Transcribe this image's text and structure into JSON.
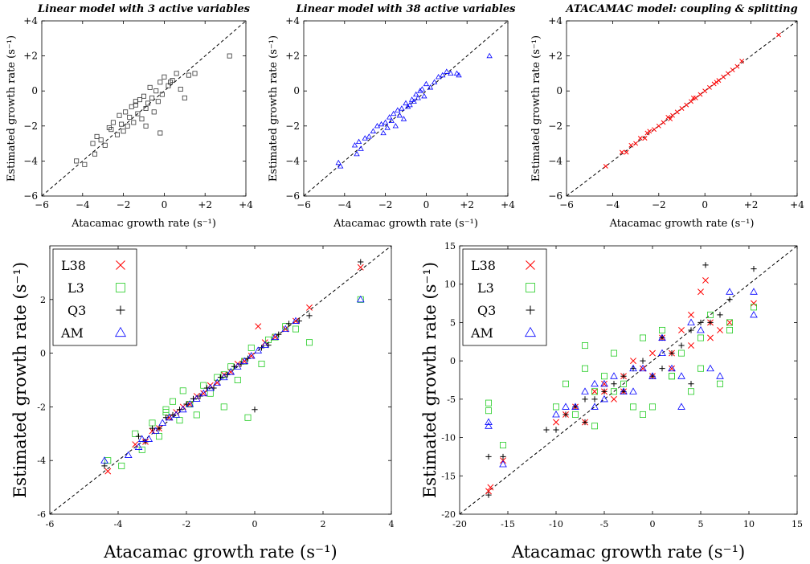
{
  "figure": {
    "colors": {
      "L38": "#ff0000",
      "L3": "#22cc22",
      "Q3": "#000000",
      "AM": "#0000ff",
      "top_markers": [
        "#333333",
        "#0000ff",
        "#ff0000"
      ]
    },
    "top_marker_icons": [
      "square-icon",
      "triangle-icon",
      "cross-icon"
    ]
  },
  "chart_data": [
    {
      "type": "scatter",
      "title": "Linear model with 3 active variables",
      "xlabel": "Atacamac growth rate (s⁻¹)",
      "ylabel": "Estimated growth rate (s⁻¹)",
      "xlim": [
        -6,
        4
      ],
      "ylim": [
        -6,
        4
      ],
      "xticks": [
        "−6",
        "−4",
        "−2",
        "0",
        "+2",
        "+4"
      ],
      "yticks": [
        "−6",
        "−4",
        "−2",
        "0",
        "+2",
        "+4"
      ],
      "reference_line": "y = x",
      "series": [
        {
          "marker": "square",
          "x": [
            -4.3,
            -3.9,
            -3.5,
            -3.4,
            -3.3,
            -3.1,
            -2.9,
            -2.7,
            -2.5,
            -2.3,
            -2.2,
            -2.1,
            -2.0,
            -1.9,
            -1.8,
            -1.7,
            -1.6,
            -1.5,
            -1.4,
            -1.3,
            -1.2,
            -1.1,
            -1.0,
            -0.9,
            -0.8,
            -0.7,
            -0.6,
            -0.5,
            -0.4,
            -0.3,
            -0.2,
            -0.1,
            0.0,
            0.2,
            0.4,
            0.6,
            0.8,
            1.0,
            1.2,
            1.5,
            -2.6,
            -1.4,
            -0.9,
            -0.2,
            0.3,
            3.2
          ],
          "y": [
            -4.0,
            -4.2,
            -3.0,
            -3.6,
            -2.6,
            -2.8,
            -3.1,
            -2.1,
            -1.8,
            -2.5,
            -1.4,
            -1.9,
            -2.3,
            -1.2,
            -2.0,
            -1.5,
            -0.9,
            -1.8,
            -0.8,
            -1.3,
            -0.5,
            -1.6,
            -0.3,
            -1.0,
            -0.7,
            0.2,
            -0.4,
            -1.2,
            0.0,
            -0.6,
            0.5,
            -0.2,
            0.8,
            0.3,
            0.6,
            1.0,
            0.1,
            -0.4,
            0.9,
            1.0,
            -2.2,
            -0.6,
            -2.0,
            -2.4,
            0.5,
            2.0
          ]
        }
      ]
    },
    {
      "type": "scatter",
      "title": "Linear model with 38 active variables",
      "xlabel": "Atacamac growth rate (s⁻¹)",
      "ylabel": "Estimated growth rate (s⁻¹)",
      "xlim": [
        -6,
        4
      ],
      "ylim": [
        -6,
        4
      ],
      "xticks": [
        "−6",
        "−4",
        "−2",
        "0",
        "+2",
        "+4"
      ],
      "yticks": [
        "−6",
        "−4",
        "−2",
        "0",
        "+2",
        "+4"
      ],
      "reference_line": "y = x",
      "series": [
        {
          "marker": "triangle",
          "x": [
            -4.3,
            -4.2,
            -3.5,
            -3.4,
            -3.3,
            -3.2,
            -3.0,
            -2.8,
            -2.6,
            -2.4,
            -2.2,
            -2.1,
            -2.0,
            -1.9,
            -1.8,
            -1.7,
            -1.6,
            -1.5,
            -1.4,
            -1.3,
            -1.2,
            -1.1,
            -1.0,
            -0.9,
            -0.8,
            -0.7,
            -0.6,
            -0.5,
            -0.4,
            -0.3,
            -0.2,
            -0.1,
            0.0,
            0.2,
            0.4,
            0.6,
            0.8,
            1.0,
            1.2,
            1.5,
            1.6,
            3.1
          ],
          "y": [
            -4.1,
            -4.3,
            -3.1,
            -3.6,
            -2.9,
            -3.3,
            -2.7,
            -2.6,
            -2.3,
            -2.0,
            -1.9,
            -2.4,
            -1.8,
            -2.1,
            -1.5,
            -1.7,
            -1.3,
            -2.0,
            -1.1,
            -1.4,
            -1.0,
            -1.6,
            -0.7,
            -0.9,
            -0.8,
            -0.5,
            -0.6,
            -0.2,
            -0.4,
            0.0,
            0.1,
            -0.3,
            0.4,
            0.2,
            0.5,
            0.8,
            0.9,
            1.1,
            1.0,
            1.0,
            0.9,
            2.0
          ]
        }
      ]
    },
    {
      "type": "scatter",
      "title": "ATACAMAC model: coupling & splitting",
      "xlabel": "Atacamac growth rate (s⁻¹)",
      "ylabel": "Estimated growth rate (s⁻¹)",
      "xlim": [
        -6,
        4
      ],
      "ylim": [
        -6,
        4
      ],
      "xticks": [
        "−6",
        "−4",
        "−2",
        "0",
        "+2",
        "+4"
      ],
      "yticks": [
        "−6",
        "−4",
        "−2",
        "0",
        "+2",
        "+4"
      ],
      "reference_line": "y = x",
      "series": [
        {
          "marker": "x",
          "x": [
            -4.3,
            -3.6,
            -3.4,
            -3.2,
            -3.0,
            -2.8,
            -2.6,
            -2.4,
            -2.2,
            -2.0,
            -1.8,
            -1.6,
            -1.4,
            -1.2,
            -1.0,
            -0.8,
            -0.6,
            -0.4,
            -0.2,
            0.0,
            0.2,
            0.4,
            0.6,
            0.8,
            1.0,
            1.2,
            1.4,
            1.6,
            -2.5,
            -1.5,
            -0.5,
            0.5,
            3.2
          ],
          "y": [
            -4.3,
            -3.5,
            -3.5,
            -3.1,
            -3.0,
            -2.7,
            -2.7,
            -2.3,
            -2.2,
            -2.0,
            -1.8,
            -1.5,
            -1.4,
            -1.2,
            -1.0,
            -0.8,
            -0.6,
            -0.4,
            -0.2,
            0.0,
            0.2,
            0.4,
            0.6,
            0.8,
            1.0,
            1.2,
            1.4,
            1.7,
            -2.4,
            -1.6,
            -0.4,
            0.5,
            3.2
          ]
        }
      ]
    },
    {
      "type": "scatter",
      "xlabel": "Atacamac growth rate (s⁻¹)",
      "ylabel": "Estimated growth rate (s⁻¹)",
      "xlim": [
        -6,
        4
      ],
      "ylim": [
        -6,
        4
      ],
      "xticks": [
        "-6",
        "-4",
        "-2",
        "0",
        "2",
        "4"
      ],
      "yticks": [
        "-6",
        "-4",
        "-2",
        "0",
        "2"
      ],
      "reference_line": "y = x",
      "legend": {
        "placement": "top-left"
      },
      "series": [
        {
          "name": "L38",
          "marker": "x",
          "x": [
            -4.3,
            -3.5,
            -3.2,
            -3.0,
            -2.8,
            -2.5,
            -2.3,
            -2.1,
            -1.9,
            -1.7,
            -1.5,
            -1.3,
            -1.1,
            -0.9,
            -0.7,
            -0.5,
            -0.3,
            -0.1,
            0.1,
            0.3,
            0.6,
            0.9,
            1.2,
            1.6,
            3.1
          ],
          "y": [
            -4.4,
            -3.4,
            -3.3,
            -2.9,
            -2.8,
            -2.4,
            -2.2,
            -2.0,
            -1.9,
            -1.6,
            -1.5,
            -1.2,
            -1.1,
            -0.8,
            -0.7,
            -0.4,
            -0.3,
            -0.1,
            1.0,
            0.4,
            0.6,
            0.9,
            1.2,
            1.7,
            3.2
          ]
        },
        {
          "name": "L3",
          "marker": "square",
          "x": [
            -4.3,
            -3.9,
            -3.5,
            -3.3,
            -3.0,
            -2.8,
            -2.6,
            -2.4,
            -2.2,
            -2.1,
            -1.9,
            -1.7,
            -1.5,
            -1.3,
            -1.1,
            -0.9,
            -0.7,
            -0.5,
            -0.3,
            -0.1,
            0.2,
            0.4,
            0.6,
            0.9,
            1.2,
            1.6,
            3.1,
            -2.6,
            -0.9,
            -0.2
          ],
          "y": [
            -4.0,
            -4.2,
            -3.0,
            -3.6,
            -2.6,
            -3.1,
            -2.1,
            -1.8,
            -2.5,
            -1.4,
            -1.9,
            -2.3,
            -1.2,
            -1.5,
            -0.9,
            -0.8,
            -0.5,
            -1.0,
            -0.3,
            0.2,
            -0.4,
            0.5,
            0.6,
            1.0,
            0.9,
            0.4,
            2.0,
            -2.2,
            -2.0,
            -2.4
          ]
        },
        {
          "name": "Q3",
          "marker": "plus",
          "x": [
            -4.4,
            -3.4,
            -3.2,
            -3.0,
            -2.8,
            -2.6,
            -2.4,
            -2.2,
            -2.0,
            -1.8,
            -1.6,
            -1.4,
            -1.2,
            -1.0,
            -0.8,
            -0.6,
            -0.4,
            -0.2,
            0.0,
            0.2,
            0.4,
            0.7,
            1.0,
            1.3,
            1.6,
            3.1
          ],
          "y": [
            -4.2,
            -3.1,
            -3.3,
            -2.8,
            -2.8,
            -2.4,
            -2.3,
            -2.1,
            -1.9,
            -1.7,
            -1.6,
            -1.3,
            -1.3,
            -0.9,
            -0.8,
            -0.5,
            -0.4,
            -0.2,
            -2.1,
            0.2,
            0.3,
            0.7,
            1.1,
            1.2,
            1.4,
            3.4
          ]
        },
        {
          "name": "AM",
          "marker": "triangle",
          "x": [
            -4.4,
            -3.7,
            -3.4,
            -3.3,
            -3.1,
            -2.9,
            -2.7,
            -2.5,
            -2.3,
            -2.1,
            -1.9,
            -1.7,
            -1.5,
            -1.3,
            -1.1,
            -0.9,
            -0.7,
            -0.5,
            -0.3,
            -0.1,
            0.1,
            0.3,
            0.6,
            0.9,
            1.2,
            3.1
          ],
          "y": [
            -4.0,
            -3.8,
            -3.5,
            -3.2,
            -3.2,
            -2.9,
            -2.6,
            -2.4,
            -2.3,
            -2.1,
            -1.9,
            -1.7,
            -1.5,
            -1.3,
            -1.1,
            -0.9,
            -0.7,
            -0.5,
            -0.3,
            -0.1,
            0.1,
            0.3,
            0.6,
            0.9,
            1.2,
            2.0
          ]
        }
      ]
    },
    {
      "type": "scatter",
      "xlabel": "Atacamac growth rate (s⁻¹)",
      "ylabel": "Estimated growth rate (s⁻¹)",
      "xlim": [
        -20,
        15
      ],
      "ylim": [
        -20,
        15
      ],
      "xticks": [
        "-20",
        "-15",
        "-10",
        "-5",
        "0",
        "5",
        "10",
        "15"
      ],
      "yticks": [
        "-20",
        "-15",
        "-10",
        "-5",
        "0",
        "5",
        "10",
        "15"
      ],
      "reference_line": "y = x",
      "legend": {
        "placement": "top-left"
      },
      "series": [
        {
          "name": "L38",
          "marker": "x",
          "x": [
            -17,
            -16.8,
            -15.5,
            -9,
            -7,
            -6,
            -5,
            -4,
            -3,
            -2,
            -1,
            0,
            1,
            2,
            3,
            4,
            5,
            5.5,
            6,
            7,
            8,
            -10,
            -8,
            -5,
            -3,
            0,
            2,
            4,
            6,
            10.5
          ],
          "y": [
            -17,
            -16.5,
            -13,
            -7,
            -8,
            -4,
            -3,
            -5,
            -2,
            0,
            -1,
            -2,
            3,
            1,
            4,
            2,
            9,
            10.5,
            5,
            4,
            5,
            -8,
            -6,
            -4,
            -4,
            1,
            -1,
            6,
            3,
            7.5
          ]
        },
        {
          "name": "L3",
          "marker": "square",
          "x": [
            -17,
            -17,
            -15.5,
            -10,
            -9,
            -8,
            -7,
            -6,
            -5,
            -4,
            -3,
            -2,
            -1,
            0,
            1,
            2,
            3,
            4,
            5,
            6,
            7,
            8,
            10.5,
            -7,
            -4,
            -1,
            2,
            5,
            8,
            -6
          ],
          "y": [
            -5.5,
            -6.5,
            -11,
            -6,
            -3,
            -7,
            -1,
            -4,
            -2,
            1,
            -3,
            -6,
            3,
            -6,
            4,
            -2,
            1,
            -4,
            3,
            6,
            -3,
            4,
            7,
            2,
            -4,
            -7,
            -2,
            -1,
            5,
            -8.5
          ]
        },
        {
          "name": "Q3",
          "marker": "plus",
          "x": [
            -17,
            -17,
            -15.5,
            -11,
            -10,
            -9,
            -8,
            -7,
            -6,
            -5,
            -4,
            -3,
            -2,
            -1,
            0,
            1,
            2,
            3,
            4,
            5,
            5.5,
            6,
            7,
            8,
            10.5,
            -7,
            -3,
            1,
            4
          ],
          "y": [
            -17.5,
            -12.5,
            -12.5,
            -9,
            -9,
            -7,
            -6,
            -5,
            -5,
            -4,
            -3,
            -2,
            -1,
            0,
            -2,
            3,
            1,
            2,
            4,
            5,
            12.5,
            5,
            6,
            8,
            12,
            -8,
            -4,
            -1,
            -3
          ]
        },
        {
          "name": "AM",
          "marker": "triangle",
          "x": [
            -17,
            -17,
            -15.5,
            -9,
            -8,
            -7,
            -6,
            -5,
            -4,
            -3,
            -2,
            -1,
            0,
            1,
            2,
            3,
            4,
            5,
            6,
            7,
            8,
            10.5,
            10.5,
            -10,
            -5,
            -2,
            1,
            3,
            -6
          ],
          "y": [
            -8,
            -8.5,
            -13.5,
            -6,
            -6,
            -4,
            -6,
            -3,
            -2,
            -4,
            -4,
            -1,
            -2,
            1,
            -1,
            -2,
            5,
            4,
            -1,
            -2,
            9,
            9,
            6,
            -7,
            -5,
            -1,
            3,
            -6,
            -3
          ]
        }
      ]
    }
  ]
}
